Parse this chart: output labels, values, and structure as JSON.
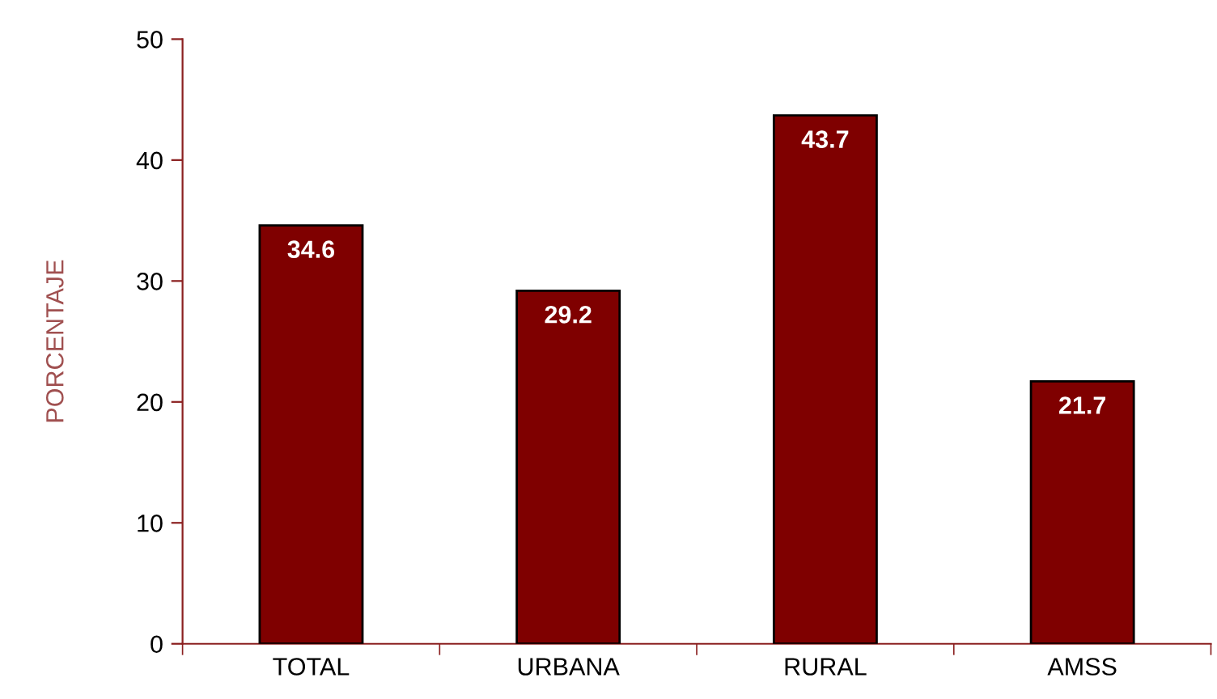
{
  "chart_data": {
    "type": "bar",
    "ylabel": "PORCENTAJE",
    "categories": [
      "TOTAL",
      "URBANA",
      "RURAL",
      "AMSS"
    ],
    "values": [
      34.6,
      29.2,
      43.7,
      21.7
    ],
    "color": "#7f0000",
    "ylim": [
      0,
      50
    ],
    "yticks": [
      0,
      10,
      20,
      30,
      40,
      50
    ],
    "grid": false,
    "data_labels": true
  }
}
